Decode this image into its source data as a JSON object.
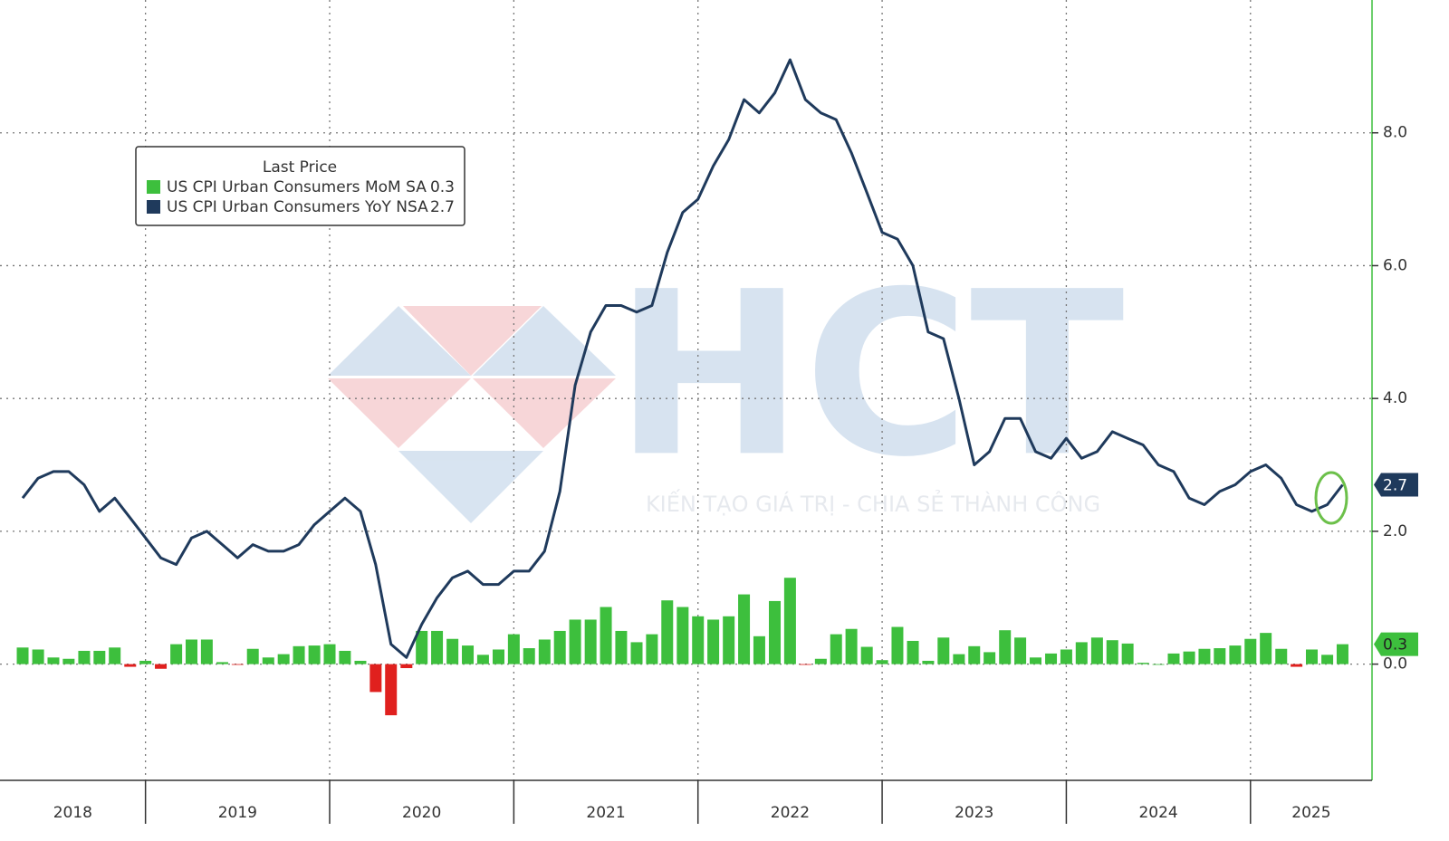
{
  "chart_data": {
    "type": "combo",
    "legend_title": "Last Price",
    "watermark": {
      "logo": "HCT",
      "slogan": "KIẾN TẠO GIÁ TRỊ - CHIA SẺ THÀNH CÔNG"
    },
    "x": [
      2018.333,
      2018.417,
      2018.5,
      2018.583,
      2018.667,
      2018.75,
      2018.833,
      2018.917,
      2019,
      2019.083,
      2019.167,
      2019.25,
      2019.333,
      2019.417,
      2019.5,
      2019.583,
      2019.667,
      2019.75,
      2019.833,
      2019.917,
      2020,
      2020.083,
      2020.167,
      2020.25,
      2020.333,
      2020.417,
      2020.5,
      2020.583,
      2020.667,
      2020.75,
      2020.833,
      2020.917,
      2021,
      2021.083,
      2021.167,
      2021.25,
      2021.333,
      2021.417,
      2021.5,
      2021.583,
      2021.667,
      2021.75,
      2021.833,
      2021.917,
      2022,
      2022.083,
      2022.167,
      2022.25,
      2022.333,
      2022.417,
      2022.5,
      2022.583,
      2022.667,
      2022.75,
      2022.833,
      2022.917,
      2023,
      2023.083,
      2023.167,
      2023.25,
      2023.333,
      2023.417,
      2023.5,
      2023.583,
      2023.667,
      2023.75,
      2023.833,
      2023.917,
      2024,
      2024.083,
      2024.167,
      2024.25,
      2024.333,
      2024.417,
      2024.5,
      2024.583,
      2024.667,
      2024.75,
      2024.833,
      2024.917,
      2025,
      2025.083,
      2025.167,
      2025.25,
      2025.333,
      2025.417,
      2025.5
    ],
    "series": [
      {
        "name": "US CPI Urban Consumers MoM SA",
        "type": "bar",
        "color": "#3dbf3d",
        "negative_color": "#e0201e",
        "values": [
          0.25,
          0.22,
          0.1,
          0.08,
          0.2,
          0.2,
          0.25,
          -0.04,
          0.05,
          -0.07,
          0.3,
          0.37,
          0.37,
          0.03,
          -0.01,
          0.23,
          0.1,
          0.15,
          0.27,
          0.28,
          0.3,
          0.2,
          0.05,
          -0.42,
          -0.77,
          -0.06,
          0.5,
          0.5,
          0.38,
          0.28,
          0.14,
          0.22,
          0.45,
          0.24,
          0.37,
          0.5,
          0.67,
          0.67,
          0.86,
          0.5,
          0.33,
          0.45,
          0.96,
          0.86,
          0.72,
          0.67,
          0.72,
          1.05,
          0.42,
          0.95,
          1.3,
          -0.01,
          0.08,
          0.45,
          0.53,
          0.26,
          0.06,
          0.56,
          0.35,
          0.05,
          0.4,
          0.15,
          0.27,
          0.18,
          0.51,
          0.4,
          0.1,
          0.16,
          0.22,
          0.33,
          0.4,
          0.36,
          0.31,
          0.02,
          0,
          0.16,
          0.19,
          0.23,
          0.24,
          0.28,
          0.38,
          0.47,
          0.23,
          -0.04,
          0.22,
          0.14,
          0.3
        ]
      },
      {
        "name": "US CPI Urban Consumers YoY NSA",
        "type": "line",
        "color": "#1f3a5c",
        "values": [
          2.5,
          2.8,
          2.9,
          2.9,
          2.7,
          2.3,
          2.5,
          2.2,
          1.9,
          1.6,
          1.5,
          1.9,
          2,
          1.8,
          1.6,
          1.8,
          1.7,
          1.7,
          1.8,
          2.1,
          2.3,
          2.5,
          2.3,
          1.5,
          0.3,
          0.1,
          0.6,
          1,
          1.3,
          1.4,
          1.2,
          1.2,
          1.4,
          1.4,
          1.7,
          2.6,
          4.2,
          5,
          5.4,
          5.4,
          5.3,
          5.4,
          6.2,
          6.8,
          7,
          7.5,
          7.9,
          8.5,
          8.3,
          8.6,
          9.1,
          8.5,
          8.3,
          8.2,
          7.7,
          7.1,
          6.5,
          6.4,
          6,
          5,
          4.9,
          4,
          3,
          3.2,
          3.7,
          3.7,
          3.2,
          3.1,
          3.4,
          3.1,
          3.2,
          3.5,
          3.4,
          3.3,
          3,
          2.9,
          2.5,
          2.4,
          2.6,
          2.7,
          2.9,
          3,
          2.8,
          2.4,
          2.3,
          2.4,
          2.7
        ]
      }
    ],
    "xlim": [
      2018.21,
      2025.66
    ],
    "xticks": [
      2018,
      2019,
      2020,
      2021,
      2022,
      2023,
      2024,
      2025
    ],
    "ylim": [
      -1.75,
      10
    ],
    "yticks": [
      {
        "value": 0,
        "label": "0.0"
      },
      {
        "value": 2,
        "label": "2.0"
      },
      {
        "value": 4,
        "label": "4.0"
      },
      {
        "value": 6,
        "label": "6.0"
      },
      {
        "value": 8,
        "label": "8.0"
      }
    ],
    "grid": true
  }
}
